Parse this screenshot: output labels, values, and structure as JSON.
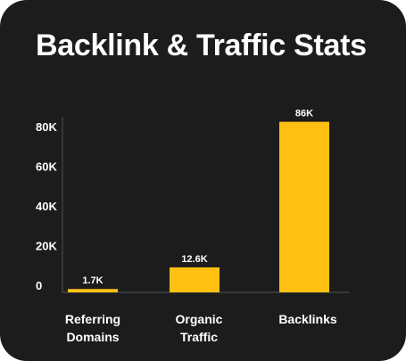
{
  "colors": {
    "background": "#1c1c1c",
    "bar": "#ffc012",
    "text": "#ffffff",
    "axis": "#555555"
  },
  "chart_data": {
    "type": "bar",
    "title": "Backlink & Traffic Stats",
    "categories": [
      "Referring Domains",
      "Organic Traffic",
      "Backlinks"
    ],
    "category_lines": [
      [
        "Referring",
        "Domains"
      ],
      [
        "Organic",
        "Traffic"
      ],
      [
        "Backlinks"
      ]
    ],
    "values": [
      1700,
      12600,
      86000
    ],
    "data_labels": [
      "1.7K",
      "12.6K",
      "86K"
    ],
    "yticks": [
      0,
      20000,
      40000,
      60000,
      80000
    ],
    "ytick_labels": [
      "0",
      "20K",
      "40K",
      "60K",
      "80K"
    ],
    "ylim": [
      0,
      90000
    ],
    "xlabel": "",
    "ylabel": "",
    "grid": false,
    "legend": "none"
  }
}
